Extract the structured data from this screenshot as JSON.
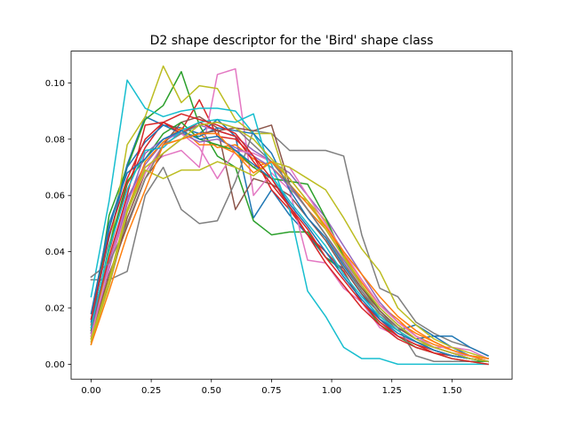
{
  "chart_data": {
    "type": "line",
    "title": "D2 shape descriptor for the 'Bird' shape class",
    "xlabel": "",
    "ylabel": "",
    "xlim": [
      -0.083,
      1.75
    ],
    "ylim": [
      -0.0053,
      0.1113
    ],
    "grid": false,
    "legend": "none",
    "x": [
      0.0,
      0.075,
      0.15,
      0.225,
      0.3,
      0.375,
      0.45,
      0.525,
      0.6,
      0.675,
      0.75,
      0.825,
      0.9,
      0.975,
      1.05,
      1.125,
      1.2,
      1.275,
      1.35,
      1.425,
      1.5,
      1.575,
      1.65
    ],
    "x_ticks": [
      0.0,
      0.25,
      0.5,
      0.75,
      1.0,
      1.25,
      1.5
    ],
    "x_tick_labels": [
      "0.00",
      "0.25",
      "0.50",
      "0.75",
      "1.00",
      "1.25",
      "1.50"
    ],
    "y_ticks": [
      0.0,
      0.02,
      0.04,
      0.06,
      0.08,
      0.1
    ],
    "y_tick_labels": [
      "0.00",
      "0.02",
      "0.04",
      "0.06",
      "0.08",
      "0.10"
    ],
    "series": [
      {
        "color": "#1f77b4",
        "values": [
          0.016,
          0.048,
          0.071,
          0.088,
          0.085,
          0.084,
          0.082,
          0.087,
          0.081,
          0.052,
          0.062,
          0.053,
          0.046,
          0.038,
          0.034,
          0.025,
          0.016,
          0.012,
          0.014,
          0.01,
          0.006,
          0.003,
          0.002
        ]
      },
      {
        "color": "#ff7f0e",
        "values": [
          0.01,
          0.03,
          0.05,
          0.066,
          0.078,
          0.08,
          0.082,
          0.077,
          0.078,
          0.073,
          0.07,
          0.064,
          0.055,
          0.048,
          0.038,
          0.029,
          0.021,
          0.016,
          0.01,
          0.007,
          0.005,
          0.003,
          0.001
        ]
      },
      {
        "color": "#2ca02c",
        "values": [
          0.011,
          0.053,
          0.07,
          0.087,
          0.092,
          0.104,
          0.085,
          0.074,
          0.07,
          0.051,
          0.046,
          0.047,
          0.047,
          0.038,
          0.033,
          0.022,
          0.014,
          0.01,
          0.006,
          0.004,
          0.002,
          0.001,
          0.001
        ]
      },
      {
        "color": "#d62728",
        "values": [
          0.014,
          0.04,
          0.064,
          0.077,
          0.086,
          0.083,
          0.094,
          0.081,
          0.08,
          0.074,
          0.062,
          0.055,
          0.046,
          0.04,
          0.033,
          0.022,
          0.016,
          0.01,
          0.007,
          0.005,
          0.003,
          0.002,
          0.001
        ]
      },
      {
        "color": "#9467bd",
        "values": [
          0.012,
          0.036,
          0.059,
          0.071,
          0.079,
          0.083,
          0.085,
          0.083,
          0.081,
          0.076,
          0.072,
          0.068,
          0.06,
          0.052,
          0.042,
          0.032,
          0.022,
          0.015,
          0.01,
          0.006,
          0.004,
          0.002,
          0.001
        ]
      },
      {
        "color": "#8c564b",
        "values": [
          0.01,
          0.028,
          0.052,
          0.068,
          0.078,
          0.086,
          0.088,
          0.084,
          0.055,
          0.066,
          0.064,
          0.06,
          0.052,
          0.044,
          0.034,
          0.025,
          0.018,
          0.012,
          0.008,
          0.005,
          0.003,
          0.002,
          0.001
        ]
      },
      {
        "color": "#e377c2",
        "values": [
          0.008,
          0.035,
          0.058,
          0.07,
          0.074,
          0.076,
          0.07,
          0.103,
          0.105,
          0.06,
          0.068,
          0.062,
          0.037,
          0.036,
          0.027,
          0.022,
          0.013,
          0.01,
          0.008,
          0.006,
          0.006,
          0.005,
          0.002
        ]
      },
      {
        "color": "#7f7f7f",
        "values": [
          0.03,
          0.03,
          0.033,
          0.06,
          0.07,
          0.055,
          0.05,
          0.051,
          0.065,
          0.083,
          0.082,
          0.076,
          0.076,
          0.076,
          0.074,
          0.046,
          0.027,
          0.024,
          0.015,
          0.011,
          0.008,
          0.006,
          0.003
        ]
      },
      {
        "color": "#bcbd22",
        "values": [
          0.007,
          0.04,
          0.078,
          0.088,
          0.106,
          0.093,
          0.099,
          0.098,
          0.087,
          0.082,
          0.082,
          0.062,
          0.058,
          0.051,
          0.039,
          0.028,
          0.017,
          0.012,
          0.008,
          0.006,
          0.004,
          0.003,
          0.002
        ]
      },
      {
        "color": "#17becf",
        "values": [
          0.024,
          0.058,
          0.101,
          0.091,
          0.088,
          0.09,
          0.091,
          0.091,
          0.09,
          0.082,
          0.071,
          0.055,
          0.026,
          0.017,
          0.006,
          0.002,
          0.002,
          0.0,
          0.0,
          0.0,
          0.0,
          0.0,
          0.0
        ]
      },
      {
        "color": "#1f77b4",
        "values": [
          0.015,
          0.045,
          0.07,
          0.079,
          0.085,
          0.082,
          0.081,
          0.084,
          0.083,
          0.082,
          0.075,
          0.062,
          0.052,
          0.045,
          0.035,
          0.026,
          0.018,
          0.013,
          0.009,
          0.01,
          0.01,
          0.006,
          0.003
        ]
      },
      {
        "color": "#ff7f0e",
        "values": [
          0.009,
          0.03,
          0.055,
          0.072,
          0.079,
          0.084,
          0.078,
          0.078,
          0.075,
          0.07,
          0.072,
          0.064,
          0.057,
          0.049,
          0.039,
          0.03,
          0.021,
          0.015,
          0.011,
          0.008,
          0.005,
          0.003,
          0.002
        ]
      },
      {
        "color": "#2ca02c",
        "values": [
          0.012,
          0.042,
          0.065,
          0.073,
          0.082,
          0.086,
          0.08,
          0.078,
          0.076,
          0.07,
          0.066,
          0.065,
          0.064,
          0.052,
          0.038,
          0.028,
          0.019,
          0.013,
          0.009,
          0.006,
          0.004,
          0.002,
          0.001
        ]
      },
      {
        "color": "#d62728",
        "values": [
          0.013,
          0.038,
          0.06,
          0.085,
          0.086,
          0.082,
          0.086,
          0.083,
          0.081,
          0.072,
          0.064,
          0.056,
          0.048,
          0.038,
          0.03,
          0.022,
          0.015,
          0.01,
          0.007,
          0.004,
          0.003,
          0.002,
          0.001
        ]
      },
      {
        "color": "#9467bd",
        "values": [
          0.011,
          0.034,
          0.057,
          0.075,
          0.08,
          0.082,
          0.079,
          0.08,
          0.077,
          0.074,
          0.07,
          0.063,
          0.055,
          0.046,
          0.037,
          0.028,
          0.02,
          0.014,
          0.009,
          0.006,
          0.004,
          0.002,
          0.001
        ]
      },
      {
        "color": "#8c564b",
        "values": [
          0.009,
          0.032,
          0.049,
          0.066,
          0.075,
          0.08,
          0.082,
          0.083,
          0.084,
          0.083,
          0.085,
          0.064,
          0.055,
          0.046,
          0.036,
          0.027,
          0.019,
          0.013,
          0.009,
          0.006,
          0.004,
          0.002,
          0.001
        ]
      },
      {
        "color": "#e377c2",
        "values": [
          0.01,
          0.035,
          0.055,
          0.068,
          0.078,
          0.082,
          0.077,
          0.066,
          0.076,
          0.075,
          0.072,
          0.07,
          0.06,
          0.05,
          0.04,
          0.03,
          0.021,
          0.015,
          0.01,
          0.006,
          0.004,
          0.003,
          0.002
        ]
      },
      {
        "color": "#7f7f7f",
        "values": [
          0.031,
          0.036,
          0.05,
          0.066,
          0.078,
          0.082,
          0.085,
          0.086,
          0.084,
          0.078,
          0.072,
          0.064,
          0.055,
          0.046,
          0.036,
          0.026,
          0.018,
          0.013,
          0.003,
          0.001,
          0.001,
          0.001,
          0.0
        ]
      },
      {
        "color": "#bcbd22",
        "values": [
          0.008,
          0.028,
          0.054,
          0.069,
          0.066,
          0.069,
          0.069,
          0.072,
          0.07,
          0.067,
          0.072,
          0.07,
          0.066,
          0.062,
          0.052,
          0.041,
          0.033,
          0.02,
          0.014,
          0.009,
          0.006,
          0.004,
          0.002
        ]
      },
      {
        "color": "#17becf",
        "values": [
          0.013,
          0.041,
          0.062,
          0.076,
          0.077,
          0.083,
          0.086,
          0.087,
          0.086,
          0.089,
          0.067,
          0.058,
          0.05,
          0.042,
          0.032,
          0.024,
          0.017,
          0.012,
          0.008,
          0.005,
          0.003,
          0.002,
          0.001
        ]
      },
      {
        "color": "#1f77b4",
        "values": [
          0.018,
          0.05,
          0.068,
          0.073,
          0.08,
          0.083,
          0.08,
          0.081,
          0.076,
          0.071,
          0.066,
          0.057,
          0.049,
          0.04,
          0.031,
          0.023,
          0.016,
          0.011,
          0.008,
          0.005,
          0.003,
          0.002,
          0.001
        ]
      },
      {
        "color": "#ff7f0e",
        "values": [
          0.007,
          0.026,
          0.046,
          0.062,
          0.078,
          0.08,
          0.082,
          0.082,
          0.075,
          0.068,
          0.072,
          0.066,
          0.058,
          0.049,
          0.04,
          0.032,
          0.024,
          0.017,
          0.012,
          0.008,
          0.005,
          0.003,
          0.002
        ]
      },
      {
        "color": "#d62728",
        "values": [
          0.016,
          0.046,
          0.066,
          0.08,
          0.086,
          0.089,
          0.087,
          0.085,
          0.082,
          0.074,
          0.066,
          0.056,
          0.046,
          0.036,
          0.028,
          0.02,
          0.014,
          0.009,
          0.006,
          0.004,
          0.002,
          0.001,
          0.0
        ]
      },
      {
        "color": "#bcbd22",
        "values": [
          0.009,
          0.03,
          0.055,
          0.07,
          0.075,
          0.08,
          0.085,
          0.086,
          0.084,
          0.08,
          0.073,
          0.066,
          0.058,
          0.048,
          0.038,
          0.028,
          0.02,
          0.014,
          0.009,
          0.006,
          0.004,
          0.002,
          0.001
        ]
      }
    ]
  }
}
